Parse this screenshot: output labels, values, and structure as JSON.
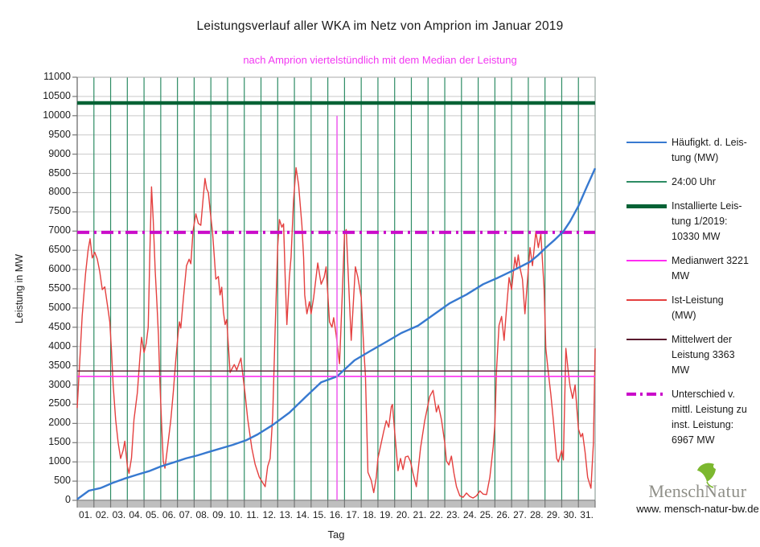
{
  "title": "Leistungsverlauf aller WKA im Netz von Amprion im Januar 2019",
  "subtitle": "nach Amprion viertelstündlich mit dem Median der Leistung",
  "x_axis_title": "Tag",
  "y_axis_title": "Leistung in MW",
  "logo": {
    "brand_part1": "Mensch",
    "brand_part2": "Natur",
    "website": "www. mensch-natur-bw.de",
    "leaf_color": "#7cb82f"
  },
  "legend": [
    {
      "label": "Häufigkt. d. Leis-\ntung (MW)",
      "color": "#3779d0",
      "thickness": 2.5,
      "dashed": false
    },
    {
      "label": "24:00 Uhr",
      "color": "#2d8c64",
      "thickness": 1.3,
      "dashed": false
    },
    {
      "label": "Installierte Leis-\ntung 1/2019:\n10330 MW",
      "color": "#046235",
      "thickness": 5,
      "dashed": false
    },
    {
      "label": "Medianwert 3221\nMW",
      "color": "#ff2df2",
      "thickness": 1.6,
      "dashed": false
    },
    {
      "label": "Ist-Leistung\n(MW)",
      "color": "#e4403f",
      "thickness": 1.4,
      "dashed": false
    },
    {
      "label": "Mittelwert der\nLeistung 3363\nMW",
      "color": "#5a1a2e",
      "thickness": 1.4,
      "dashed": false
    },
    {
      "label": "Unterschied v.\nmittl. Leistung zu\ninst. Leistung:\n6967 MW",
      "color": "#ca0cca",
      "thickness": 4,
      "dashed": true
    }
  ],
  "style": {
    "grid_color": "#c9c9c9",
    "border_color": "#a8a8a8",
    "axis_color": "#6e6e6e",
    "band_color": "#bfbfbf",
    "tick_color": "#777777"
  },
  "chart_data": {
    "type": "line",
    "title": "Leistungsverlauf aller WKA im Netz von Amprion im Januar 2019",
    "xlabel": "Tag",
    "ylabel": "Leistung in MW",
    "xlim": [
      0,
      31
    ],
    "ylim": [
      0,
      11000
    ],
    "y_tick_step": 500,
    "grid": true,
    "legend_position": "right",
    "x_tick_labels": [
      "01.",
      "02.",
      "03.",
      "04.",
      "05.",
      "06.",
      "07.",
      "08.",
      "09.",
      "10.",
      "11.",
      "12.",
      "13.",
      "14.",
      "15.",
      "16.",
      "17.",
      "18.",
      "19.",
      "20.",
      "21.",
      "22.",
      "23.",
      "24.",
      "25.",
      "26.",
      "27.",
      "28.",
      "29.",
      "30.",
      "31."
    ],
    "day_lines": {
      "name": "24:00 Uhr",
      "color": "#2d8c64",
      "width": 1.2,
      "days": [
        1,
        2,
        3,
        4,
        5,
        6,
        7,
        8,
        9,
        10,
        11,
        12,
        13,
        14,
        15,
        16,
        17,
        18,
        19,
        20,
        21,
        22,
        23,
        24,
        25,
        26,
        27,
        28,
        29,
        30,
        31
      ]
    },
    "hlines": [
      {
        "name": "Installierte Leistung 1/2019",
        "value": 10330,
        "color": "#046235",
        "width": 4.5,
        "dash": null
      },
      {
        "name": "Mittelwert der Leistung",
        "value": 3363,
        "color": "#5a1a2e",
        "width": 1.4,
        "dash": null
      },
      {
        "name": "Medianwert",
        "value": 3221,
        "color": "#ff2df2",
        "width": 1.6,
        "dash": null
      },
      {
        "name": "Unterschied v. mittl. Leistung zu inst. Leistung",
        "value": 6967,
        "color": "#ca0cca",
        "width": 4,
        "dash": "15 6 3 6"
      }
    ],
    "vline": {
      "name": "Median-Position",
      "x": 15.55,
      "y_top": 10000,
      "color": "#ef64ef",
      "width": 1.6
    },
    "series": [
      {
        "name": "Ist-Leistung (MW)",
        "color": "#e4403f",
        "width": 1.4,
        "points": [
          [
            0,
            2400
          ],
          [
            0.15,
            3600
          ],
          [
            0.3,
            4800
          ],
          [
            0.5,
            5900
          ],
          [
            0.65,
            6500
          ],
          [
            0.77,
            6800
          ],
          [
            0.9,
            6300
          ],
          [
            1.05,
            6450
          ],
          [
            1.2,
            6280
          ],
          [
            1.35,
            5950
          ],
          [
            1.5,
            5480
          ],
          [
            1.65,
            5550
          ],
          [
            1.8,
            5100
          ],
          [
            1.95,
            4640
          ],
          [
            2.05,
            3900
          ],
          [
            2.15,
            3000
          ],
          [
            2.3,
            2100
          ],
          [
            2.45,
            1500
          ],
          [
            2.6,
            1090
          ],
          [
            2.75,
            1300
          ],
          [
            2.85,
            1540
          ],
          [
            3.0,
            900
          ],
          [
            3.1,
            700
          ],
          [
            3.25,
            1100
          ],
          [
            3.4,
            2100
          ],
          [
            3.6,
            2800
          ],
          [
            3.75,
            3700
          ],
          [
            3.85,
            4240
          ],
          [
            4.0,
            3840
          ],
          [
            4.13,
            4080
          ],
          [
            4.25,
            4500
          ],
          [
            4.35,
            6500
          ],
          [
            4.45,
            8150
          ],
          [
            4.55,
            7300
          ],
          [
            4.67,
            5960
          ],
          [
            4.77,
            5125
          ],
          [
            4.86,
            4290
          ],
          [
            4.95,
            3100
          ],
          [
            5.05,
            2000
          ],
          [
            5.15,
            1025
          ],
          [
            5.25,
            835
          ],
          [
            5.4,
            1360
          ],
          [
            5.6,
            2070
          ],
          [
            5.75,
            2820
          ],
          [
            5.9,
            3660
          ],
          [
            6.05,
            4390
          ],
          [
            6.12,
            4640
          ],
          [
            6.2,
            4480
          ],
          [
            6.36,
            5270
          ],
          [
            6.54,
            6100
          ],
          [
            6.7,
            6270
          ],
          [
            6.8,
            6150
          ],
          [
            6.93,
            7000
          ],
          [
            7.1,
            7450
          ],
          [
            7.25,
            7200
          ],
          [
            7.4,
            7150
          ],
          [
            7.55,
            7900
          ],
          [
            7.65,
            8370
          ],
          [
            7.75,
            8100
          ],
          [
            7.85,
            8000
          ],
          [
            7.95,
            7550
          ],
          [
            8.1,
            6960
          ],
          [
            8.2,
            6380
          ],
          [
            8.3,
            5750
          ],
          [
            8.45,
            5820
          ],
          [
            8.55,
            5340
          ],
          [
            8.65,
            5540
          ],
          [
            8.75,
            4900
          ],
          [
            8.85,
            4570
          ],
          [
            8.95,
            4700
          ],
          [
            9.05,
            4010
          ],
          [
            9.15,
            3320
          ],
          [
            9.3,
            3450
          ],
          [
            9.4,
            3530
          ],
          [
            9.55,
            3390
          ],
          [
            9.8,
            3700
          ],
          [
            9.9,
            3300
          ],
          [
            10.05,
            2760
          ],
          [
            10.2,
            2130
          ],
          [
            10.45,
            1360
          ],
          [
            10.65,
            940
          ],
          [
            10.9,
            605
          ],
          [
            11.1,
            460
          ],
          [
            11.25,
            355
          ],
          [
            11.4,
            880
          ],
          [
            11.55,
            1090
          ],
          [
            11.7,
            2200
          ],
          [
            11.85,
            4500
          ],
          [
            12.0,
            6600
          ],
          [
            12.1,
            7300
          ],
          [
            12.25,
            7100
          ],
          [
            12.35,
            7190
          ],
          [
            12.45,
            5800
          ],
          [
            12.55,
            4570
          ],
          [
            12.7,
            5800
          ],
          [
            12.8,
            6320
          ],
          [
            12.95,
            7800
          ],
          [
            13.1,
            8650
          ],
          [
            13.25,
            8200
          ],
          [
            13.45,
            7150
          ],
          [
            13.55,
            6320
          ],
          [
            13.62,
            5340
          ],
          [
            13.75,
            4850
          ],
          [
            13.9,
            5165
          ],
          [
            14.0,
            4850
          ],
          [
            14.15,
            5270
          ],
          [
            14.4,
            6170
          ],
          [
            14.6,
            5620
          ],
          [
            14.78,
            5800
          ],
          [
            14.9,
            6070
          ],
          [
            15.1,
            4640
          ],
          [
            15.25,
            4500
          ],
          [
            15.35,
            4750
          ],
          [
            15.5,
            4300
          ],
          [
            15.7,
            3550
          ],
          [
            15.85,
            5200
          ],
          [
            16.0,
            6940
          ],
          [
            16.1,
            7040
          ],
          [
            16.25,
            5600
          ],
          [
            16.4,
            4160
          ],
          [
            16.55,
            5300
          ],
          [
            16.65,
            6070
          ],
          [
            16.8,
            5800
          ],
          [
            17.0,
            5270
          ],
          [
            17.15,
            3950
          ],
          [
            17.25,
            3240
          ],
          [
            17.4,
            730
          ],
          [
            17.6,
            520
          ],
          [
            17.75,
            200
          ],
          [
            17.9,
            600
          ],
          [
            18.0,
            1090
          ],
          [
            18.2,
            1500
          ],
          [
            18.35,
            1800
          ],
          [
            18.5,
            2070
          ],
          [
            18.65,
            1900
          ],
          [
            18.8,
            2440
          ],
          [
            18.87,
            2490
          ],
          [
            19.0,
            1800
          ],
          [
            19.2,
            770
          ],
          [
            19.35,
            1090
          ],
          [
            19.5,
            800
          ],
          [
            19.65,
            1130
          ],
          [
            19.8,
            1150
          ],
          [
            19.95,
            1010
          ],
          [
            20.1,
            700
          ],
          [
            20.3,
            355
          ],
          [
            20.55,
            1360
          ],
          [
            20.8,
            2070
          ],
          [
            21.1,
            2700
          ],
          [
            21.3,
            2860
          ],
          [
            21.5,
            2300
          ],
          [
            21.62,
            2470
          ],
          [
            21.8,
            2100
          ],
          [
            22.0,
            1500
          ],
          [
            22.1,
            1025
          ],
          [
            22.25,
            920
          ],
          [
            22.4,
            1150
          ],
          [
            22.55,
            700
          ],
          [
            22.7,
            355
          ],
          [
            22.9,
            120
          ],
          [
            23.1,
            80
          ],
          [
            23.3,
            190
          ],
          [
            23.5,
            100
          ],
          [
            23.7,
            60
          ],
          [
            23.9,
            120
          ],
          [
            24.1,
            245
          ],
          [
            24.3,
            160
          ],
          [
            24.5,
            150
          ],
          [
            24.7,
            600
          ],
          [
            24.9,
            1400
          ],
          [
            25.0,
            1990
          ],
          [
            25.1,
            3390
          ],
          [
            25.25,
            4550
          ],
          [
            25.4,
            4780
          ],
          [
            25.55,
            4160
          ],
          [
            25.7,
            5000
          ],
          [
            25.85,
            5790
          ],
          [
            26.0,
            5480
          ],
          [
            26.2,
            6320
          ],
          [
            26.3,
            6050
          ],
          [
            26.4,
            6380
          ],
          [
            26.5,
            6050
          ],
          [
            26.65,
            5750
          ],
          [
            26.8,
            4850
          ],
          [
            27.0,
            6000
          ],
          [
            27.1,
            6570
          ],
          [
            27.25,
            6100
          ],
          [
            27.45,
            6990
          ],
          [
            27.6,
            6570
          ],
          [
            27.75,
            6930
          ],
          [
            27.95,
            5480
          ],
          [
            28.05,
            3950
          ],
          [
            28.2,
            3320
          ],
          [
            28.35,
            2760
          ],
          [
            28.5,
            2070
          ],
          [
            28.7,
            1090
          ],
          [
            28.8,
            1000
          ],
          [
            29.0,
            1300
          ],
          [
            29.1,
            1050
          ],
          [
            29.25,
            3950
          ],
          [
            29.4,
            3300
          ],
          [
            29.5,
            2970
          ],
          [
            29.65,
            2650
          ],
          [
            29.8,
            3000
          ],
          [
            30.0,
            1860
          ],
          [
            30.15,
            1650
          ],
          [
            30.25,
            1740
          ],
          [
            30.4,
            1255
          ],
          [
            30.55,
            600
          ],
          [
            30.75,
            315
          ],
          [
            30.9,
            1500
          ],
          [
            31.0,
            3950
          ]
        ]
      },
      {
        "name": "Häufigkt. d. Leistung (MW)",
        "color": "#3779d0",
        "width": 2.4,
        "points": [
          [
            0,
            30
          ],
          [
            0.7,
            250
          ],
          [
            1.4,
            320
          ],
          [
            2.1,
            450
          ],
          [
            2.8,
            560
          ],
          [
            3.6,
            670
          ],
          [
            4.3,
            760
          ],
          [
            5.0,
            880
          ],
          [
            5.8,
            990
          ],
          [
            6.5,
            1090
          ],
          [
            7.2,
            1170
          ],
          [
            7.9,
            1260
          ],
          [
            8.6,
            1350
          ],
          [
            9.3,
            1440
          ],
          [
            10.1,
            1560
          ],
          [
            10.8,
            1715
          ],
          [
            11.7,
            1960
          ],
          [
            12.7,
            2280
          ],
          [
            13.7,
            2700
          ],
          [
            14.6,
            3070
          ],
          [
            15.55,
            3221
          ],
          [
            16.6,
            3640
          ],
          [
            17.5,
            3870
          ],
          [
            18.5,
            4120
          ],
          [
            19.4,
            4350
          ],
          [
            20.4,
            4540
          ],
          [
            21.4,
            4850
          ],
          [
            22.3,
            5125
          ],
          [
            23.3,
            5350
          ],
          [
            24.3,
            5620
          ],
          [
            25.2,
            5790
          ],
          [
            26.2,
            6000
          ],
          [
            27.1,
            6200
          ],
          [
            27.6,
            6380
          ],
          [
            28.1,
            6590
          ],
          [
            28.6,
            6780
          ],
          [
            29.1,
            6990
          ],
          [
            29.5,
            7250
          ],
          [
            30.0,
            7650
          ],
          [
            30.5,
            8150
          ],
          [
            31,
            8630
          ]
        ]
      }
    ]
  }
}
